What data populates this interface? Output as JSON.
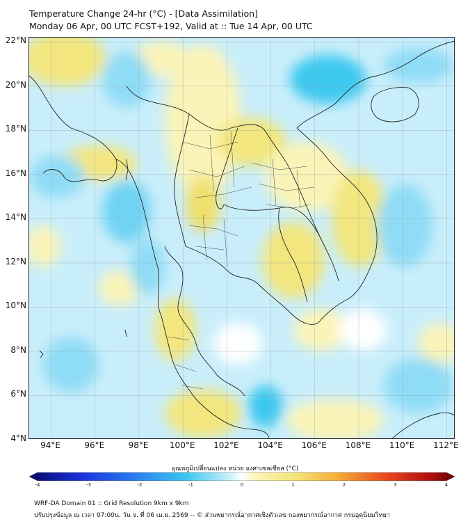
{
  "title_line1": "Temperature Change 24-hr (°C) - [Data Assimilation]",
  "title_line2": "Monday 06 Apr, 00 UTC FCST+192, Valid at :: Tue 14 Apr, 00 UTC",
  "map": {
    "lat_labels": [
      "22°N",
      "20°N",
      "18°N",
      "16°N",
      "14°N",
      "12°N",
      "10°N",
      "8°N",
      "6°N",
      "4°N"
    ],
    "lon_labels": [
      "94°E",
      "96°E",
      "98°E",
      "100°E",
      "102°E",
      "104°E",
      "106°E",
      "108°E",
      "110°E",
      "112°E"
    ],
    "lat_range": [
      4,
      22.2
    ],
    "lon_range": [
      93,
      112.4
    ],
    "field_colors": {
      "cool_strong": "#3cc8f0",
      "cool": "#8fdcf6",
      "cool_light": "#c8eefb",
      "neutral": "#ffffff",
      "warm_light": "#fbf4b8",
      "warm": "#f3e67e"
    }
  },
  "colorbar": {
    "title": "อุณหภูมิเปลี่ยนแปลง หน่วย องศาเซลเซียส (°C)",
    "ticks": [
      "-4",
      "-3",
      "-2",
      "-1",
      "0",
      "1",
      "2",
      "3",
      "4"
    ],
    "range": [
      -4,
      4
    ]
  },
  "footer": {
    "line1": "WRF-DA Domain 01 :: Grid Resolution 9km x 9km",
    "line2": "ปรับปรุงข้อมูล ณ เวลา 07:00น. วัน จ. ที่ 06 เม.ย. 2569 -- © ส่วนพยากรณ์อากาศเชิงตัวเลข กองพยากรณ์อากาศ กรมอุตุนิยมวิทยา"
  }
}
